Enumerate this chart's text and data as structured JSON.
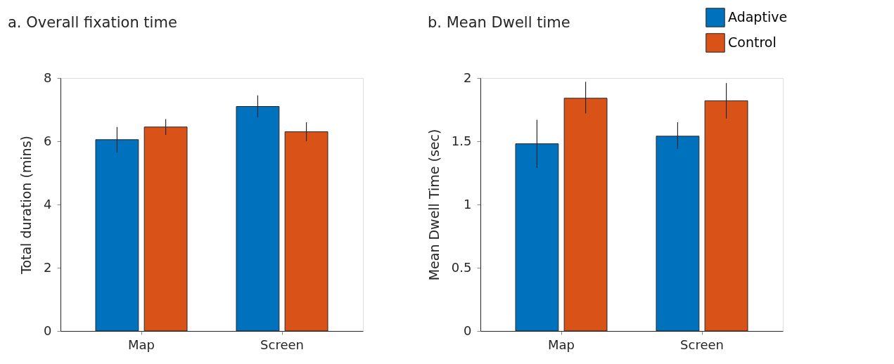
{
  "chart_data": [
    {
      "type": "bar",
      "title": "a. Overall fixation time",
      "ylabel": "Total duration (mins)",
      "categories": [
        "Map",
        "Screen"
      ],
      "series": [
        {
          "color": "#0072bd",
          "values": [
            6.05,
            7.1
          ],
          "errors": [
            [
              5.65,
              6.45
            ],
            [
              6.75,
              7.45
            ]
          ]
        },
        {
          "color": "#d95319",
          "values": [
            6.45,
            6.3
          ],
          "errors": [
            [
              6.2,
              6.7
            ],
            [
              6.0,
              6.6
            ]
          ]
        }
      ],
      "ylim": [
        0,
        8
      ],
      "yticks": [
        0,
        2,
        4,
        6,
        8
      ],
      "grid": false,
      "legend": false
    },
    {
      "type": "bar",
      "title": "b. Mean Dwell time",
      "ylabel": "Mean Dwell Time (sec)",
      "categories": [
        "Map",
        "Screen"
      ],
      "series": [
        {
          "name": "Adaptive",
          "color": "#0072bd",
          "values": [
            1.48,
            1.54
          ],
          "errors": [
            [
              1.29,
              1.67
            ],
            [
              1.44,
              1.65
            ]
          ]
        },
        {
          "name": "Control",
          "color": "#d95319",
          "values": [
            1.84,
            1.82
          ],
          "errors": [
            [
              1.72,
              1.97
            ],
            [
              1.68,
              1.96
            ]
          ]
        }
      ],
      "ylim": [
        0,
        2
      ],
      "yticks": [
        0,
        0.5,
        1,
        1.5,
        2
      ],
      "grid": false,
      "legend": "top right"
    }
  ]
}
